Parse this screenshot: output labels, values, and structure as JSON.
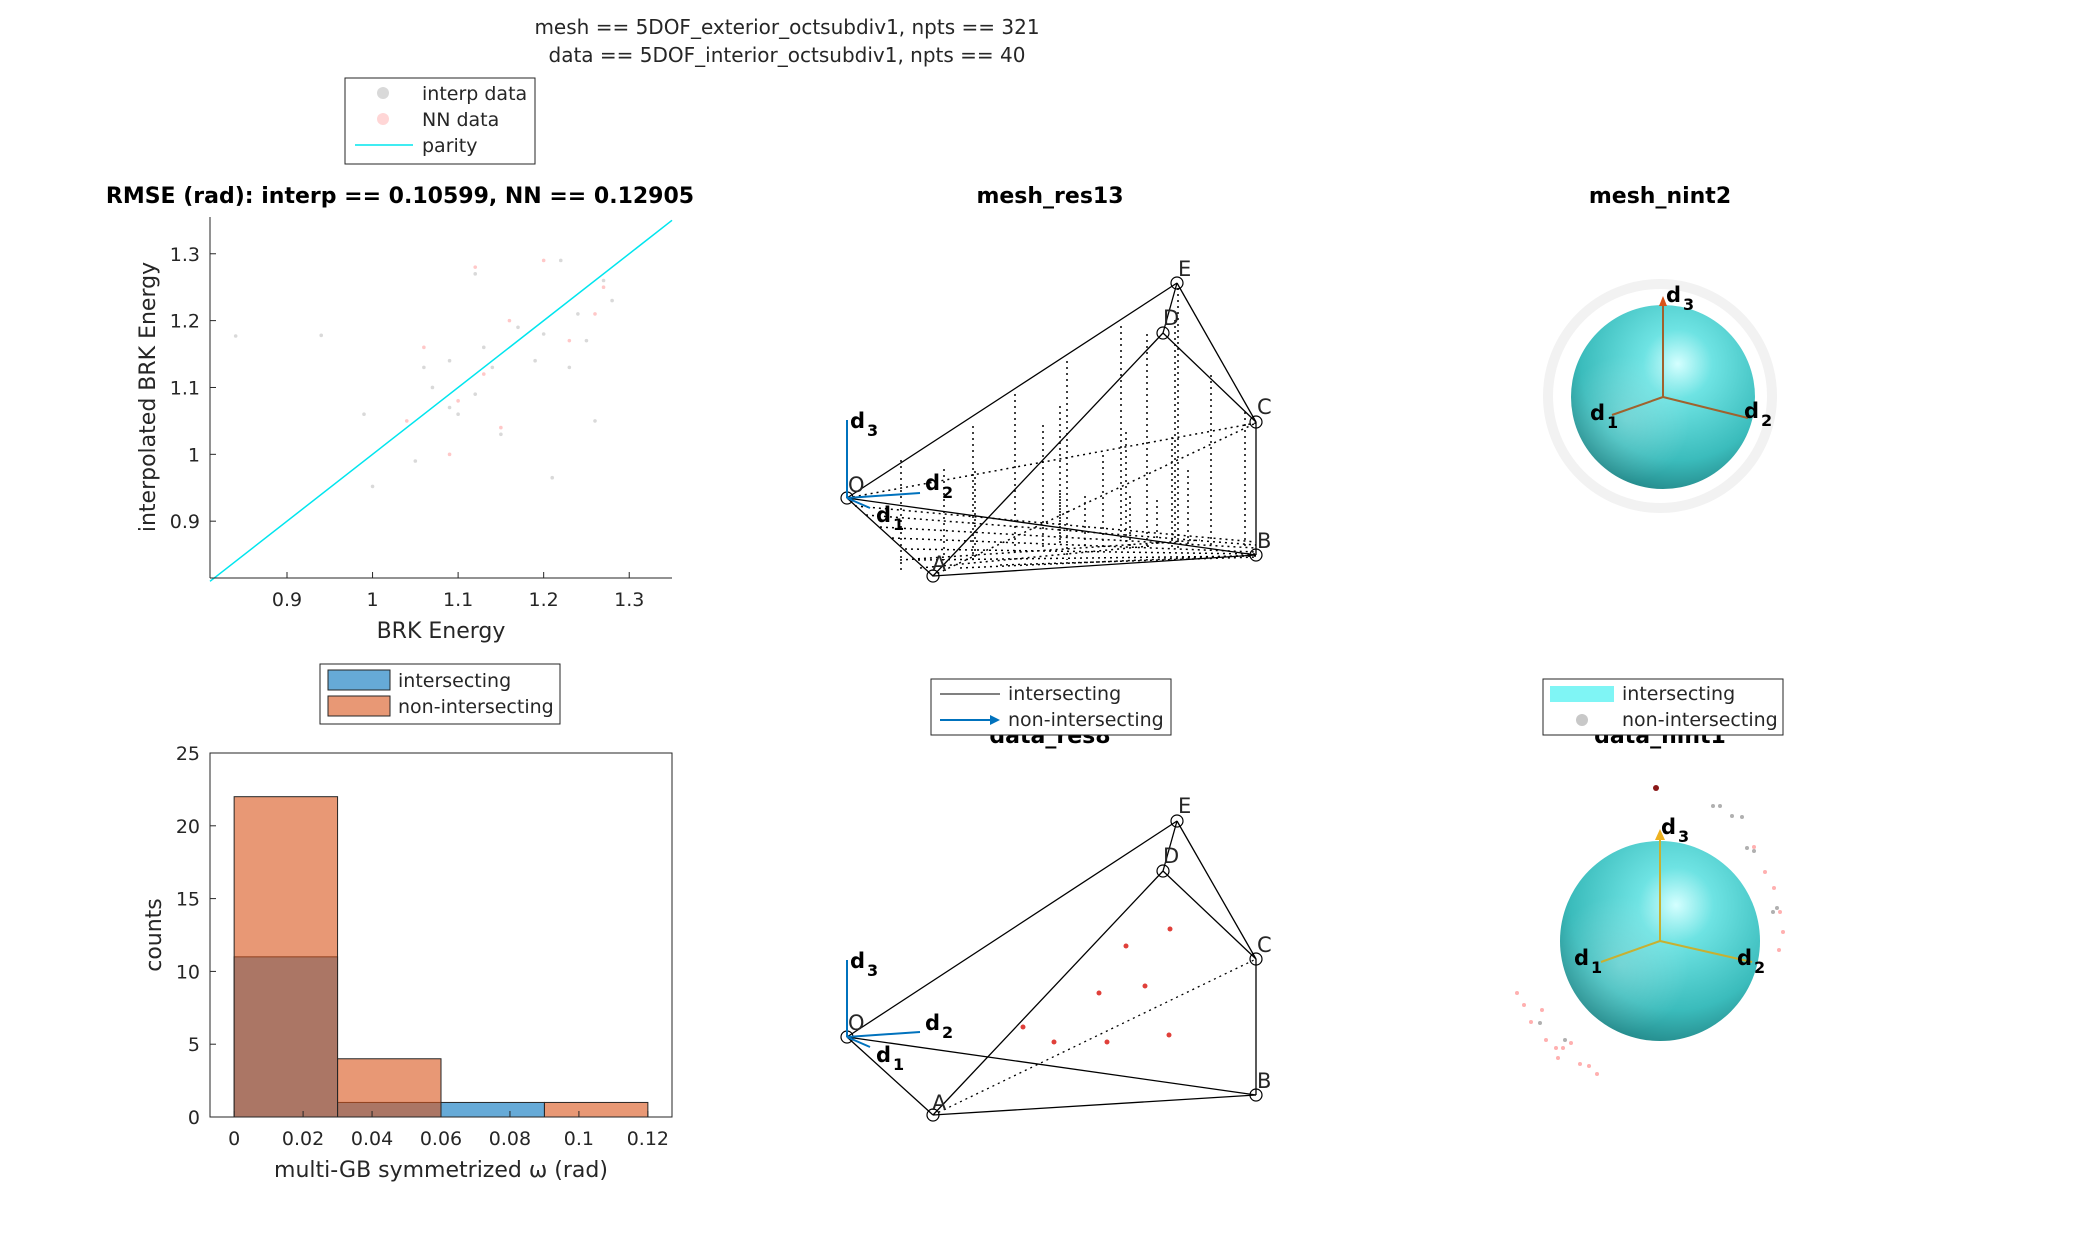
{
  "figure": {
    "suptitle_line1": "mesh == 5DOF_exterior_octsubdiv1, npts == 321",
    "suptitle_line2": "data == 5DOF_interior_octsubdiv1, npts == 40"
  },
  "legends": {
    "parity": [
      "interp data",
      "NN data",
      "parity"
    ],
    "hist": [
      "intersecting",
      "non-intersecting"
    ],
    "res": [
      "intersecting",
      "non-intersecting"
    ],
    "nint": [
      "intersecting",
      "non-intersecting"
    ]
  },
  "colors": {
    "parity_line": "#00e5ee",
    "interp_points": "#d9d9d9",
    "nn_points": "#ffc8c8",
    "intersecting_bar": "#0072bd",
    "non_intersecting_bar": "#d95319",
    "sphere": "#4fd1d1",
    "data_points": "#e0403a",
    "axis_vector": "#0072bd"
  },
  "panels": {
    "res_mesh_title": "mesh_res13",
    "nint_mesh_title": "mesh_nint2",
    "res_data_title": "data_res8",
    "nint_data_title": "data_nint1",
    "vertex_labels": [
      "O",
      "A",
      "B",
      "C",
      "D",
      "E"
    ],
    "vector_labels": {
      "d1": "d",
      "d1_sub": "1",
      "d2": "d",
      "d2_sub": "2",
      "d3": "d",
      "d3_sub": "3"
    }
  },
  "chart_data": [
    {
      "type": "scatter",
      "title": "RMSE (rad): interp == 0.10599, NN == 0.12905",
      "xlabel": "BRK Energy",
      "ylabel": "interpolated BRK Energy",
      "xlim": [
        0.81,
        1.35
      ],
      "ylim": [
        0.815,
        1.355
      ],
      "xticks": [
        0.9,
        1,
        1.1,
        1.2,
        1.3
      ],
      "xtick_labels": [
        "0.9",
        "1",
        "1.1",
        "1.2",
        "1.3"
      ],
      "yticks": [
        0.9,
        1,
        1.1,
        1.2,
        1.3
      ],
      "ytick_labels": [
        "0.9",
        "1",
        "1.1",
        "1.2",
        "1.3"
      ],
      "series": [
        {
          "name": "interp data",
          "points": [
            [
              0.84,
              1.177
            ],
            [
              0.94,
              1.178
            ],
            [
              1.0,
              0.952
            ],
            [
              1.06,
              1.13
            ],
            [
              1.09,
              1.07
            ],
            [
              1.1,
              1.06
            ],
            [
              1.12,
              1.09
            ],
            [
              1.13,
              1.16
            ],
            [
              1.15,
              1.03
            ],
            [
              1.17,
              1.19
            ],
            [
              1.2,
              1.18
            ],
            [
              1.22,
              1.29
            ],
            [
              1.24,
              1.21
            ],
            [
              1.25,
              1.17
            ],
            [
              1.27,
              1.26
            ],
            [
              1.28,
              1.23
            ],
            [
              1.12,
              1.27
            ],
            [
              1.05,
              0.99
            ],
            [
              1.09,
              1.14
            ],
            [
              1.21,
              0.965
            ],
            [
              1.14,
              1.13
            ],
            [
              1.07,
              1.1
            ],
            [
              1.19,
              1.14
            ],
            [
              1.23,
              1.13
            ],
            [
              1.26,
              1.05
            ],
            [
              0.99,
              1.06
            ]
          ]
        },
        {
          "name": "NN data",
          "points": [
            [
              1.12,
              1.28
            ],
            [
              1.06,
              1.16
            ],
            [
              1.1,
              1.08
            ],
            [
              1.13,
              1.12
            ],
            [
              1.2,
              1.29
            ],
            [
              1.27,
              1.25
            ],
            [
              1.04,
              1.05
            ],
            [
              1.16,
              1.2
            ],
            [
              1.23,
              1.17
            ],
            [
              1.09,
              1.0
            ],
            [
              1.15,
              1.04
            ],
            [
              1.26,
              1.21
            ]
          ]
        },
        {
          "name": "parity",
          "points": [
            [
              0.81,
              0.81
            ],
            [
              1.35,
              1.35
            ]
          ]
        }
      ],
      "legend": "outside-top"
    },
    {
      "type": "bar",
      "xlabel": "multi-GB symmetrized ω (rad)",
      "ylabel": "counts",
      "xlim": [
        -0.007,
        0.127
      ],
      "ylim": [
        0,
        25
      ],
      "xticks": [
        0,
        0.02,
        0.04,
        0.06,
        0.08,
        0.1,
        0.12
      ],
      "xtick_labels": [
        "0",
        "0.02",
        "0.04",
        "0.06",
        "0.08",
        "0.1",
        "0.12"
      ],
      "yticks": [
        0,
        5,
        10,
        15,
        20,
        25
      ],
      "ytick_labels": [
        "0",
        "5",
        "10",
        "15",
        "20",
        "25"
      ],
      "bin_edges": [
        0,
        0.03,
        0.06,
        0.09,
        0.12
      ],
      "series": [
        {
          "name": "intersecting",
          "values": [
            11,
            1,
            1,
            0
          ]
        },
        {
          "name": "non-intersecting",
          "values": [
            22,
            4,
            0,
            1
          ]
        }
      ],
      "legend": "outside-top"
    }
  ]
}
